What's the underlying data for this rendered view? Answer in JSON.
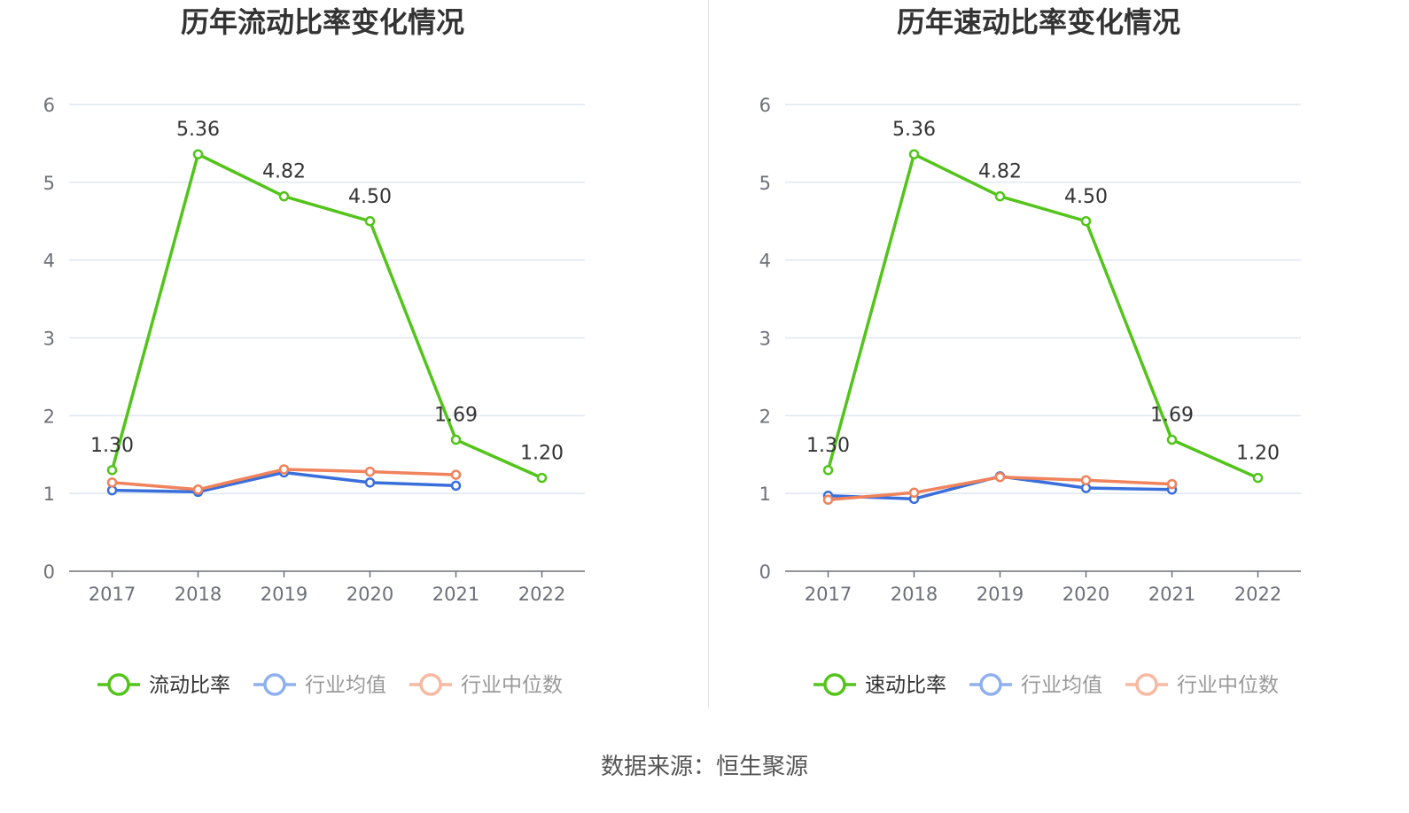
{
  "chart_data": [
    {
      "type": "line",
      "title": "历年流动比率变化情况",
      "categories": [
        "2017",
        "2018",
        "2019",
        "2020",
        "2021",
        "2022"
      ],
      "y_ticks": [
        "0",
        "1",
        "2",
        "3",
        "4",
        "5",
        "6"
      ],
      "ylim": [
        0,
        6
      ],
      "grid": true,
      "legend_position": "bottom",
      "series": [
        {
          "name": "流动比率",
          "color": "#52c41a",
          "values": [
            1.3,
            5.36,
            4.82,
            4.5,
            1.69,
            1.2
          ],
          "labels": [
            "1.30",
            "5.36",
            "4.82",
            "4.50",
            "1.69",
            "1.20"
          ]
        },
        {
          "name": "行业均值",
          "color": "#3a6fdb",
          "legend_color": "#8fb0ee",
          "values": [
            1.04,
            1.02,
            1.27,
            1.14,
            1.1,
            null
          ]
        },
        {
          "name": "行业中位数",
          "color": "#f0825c",
          "legend_color": "#f7b9a2",
          "values": [
            1.14,
            1.05,
            1.31,
            1.28,
            1.24,
            null
          ]
        }
      ]
    },
    {
      "type": "line",
      "title": "历年速动比率变化情况",
      "categories": [
        "2017",
        "2018",
        "2019",
        "2020",
        "2021",
        "2022"
      ],
      "y_ticks": [
        "0",
        "1",
        "2",
        "3",
        "4",
        "5",
        "6"
      ],
      "ylim": [
        0,
        6
      ],
      "grid": true,
      "legend_position": "bottom",
      "series": [
        {
          "name": "速动比率",
          "color": "#52c41a",
          "values": [
            1.3,
            5.36,
            4.82,
            4.5,
            1.69,
            1.2
          ],
          "labels": [
            "1.30",
            "5.36",
            "4.82",
            "4.50",
            "1.69",
            "1.20"
          ]
        },
        {
          "name": "行业均值",
          "color": "#3a6fdb",
          "legend_color": "#8fb0ee",
          "values": [
            0.97,
            0.93,
            1.22,
            1.07,
            1.05,
            null
          ]
        },
        {
          "name": "行业中位数",
          "color": "#f0825c",
          "legend_color": "#f7b9a2",
          "values": [
            0.92,
            1.01,
            1.21,
            1.17,
            1.12,
            null
          ]
        }
      ]
    }
  ],
  "footer": {
    "source": "数据来源：恒生聚源"
  }
}
